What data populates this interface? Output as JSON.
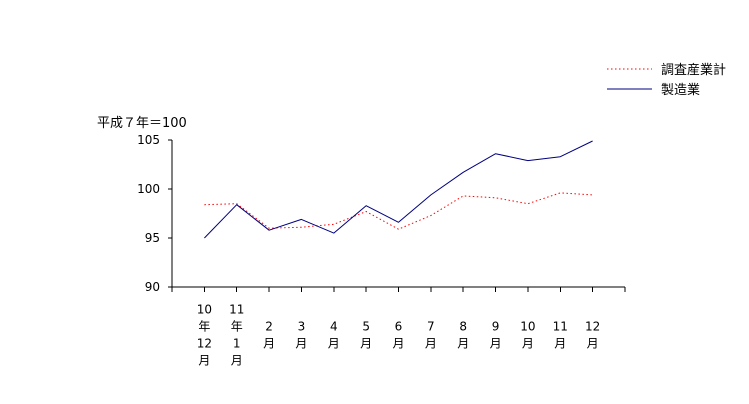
{
  "chart_data": {
    "type": "line",
    "ylabel": "平成７年＝100",
    "ylim": [
      90,
      105
    ],
    "yticks": [
      90,
      95,
      100,
      105
    ],
    "grid": false,
    "legend": "top-right",
    "categories": [
      "10年12月",
      "11年1月",
      "2月",
      "3月",
      "4月",
      "5月",
      "6月",
      "7月",
      "8月",
      "9月",
      "10月",
      "11月",
      "12月"
    ],
    "series": [
      {
        "name": "調査産業計",
        "color": "#ff0000",
        "dotted": true,
        "values": [
          98.4,
          98.5,
          96.0,
          96.1,
          96.4,
          97.7,
          95.9,
          97.3,
          99.3,
          99.1,
          98.5,
          99.6,
          99.4
        ]
      },
      {
        "name": "製造業",
        "color": "#000080",
        "dotted": false,
        "values": [
          95.0,
          98.4,
          95.8,
          96.9,
          95.5,
          98.3,
          96.6,
          99.4,
          101.7,
          103.6,
          102.9,
          103.3,
          104.9
        ]
      }
    ]
  }
}
